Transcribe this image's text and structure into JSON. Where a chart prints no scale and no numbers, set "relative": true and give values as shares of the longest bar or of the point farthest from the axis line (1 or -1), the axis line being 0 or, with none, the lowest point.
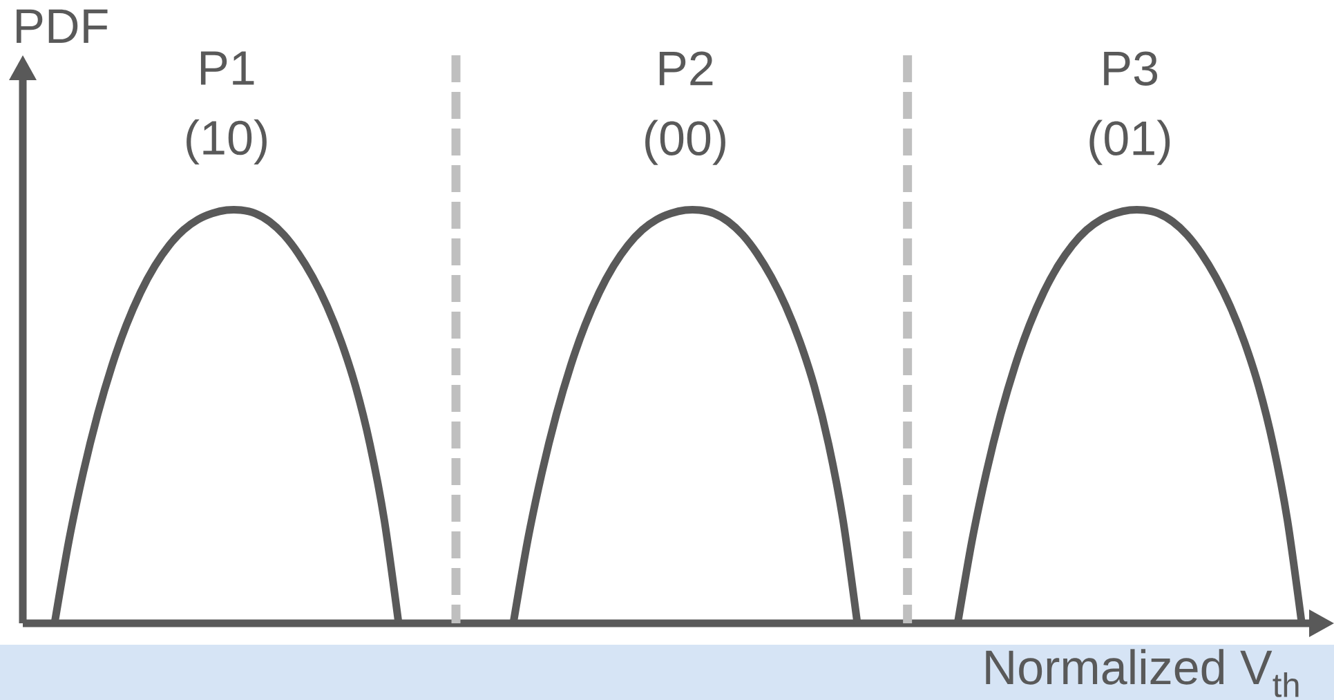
{
  "chart_data": {
    "type": "line",
    "relative": true,
    "xlabel": "Normalized V$_{th}$",
    "ylabel": "PDF",
    "categories": [
      null,
      null,
      null,
      null,
      null,
      null,
      null,
      null,
      null,
      null,
      null,
      null,
      null,
      null,
      null,
      null,
      null,
      null,
      null,
      null,
      null,
      null,
      null,
      null,
      null,
      null,
      null,
      null,
      null,
      null,
      null,
      null,
      null,
      null,
      null,
      null,
      null,
      null,
      null,
      null,
      null,
      null,
      null,
      null,
      null,
      null,
      null,
      null,
      null,
      null,
      null,
      null,
      null,
      null,
      null,
      null,
      null,
      null,
      null,
      null,
      null,
      null,
      null,
      null,
      null,
      null,
      null,
      null,
      null,
      null,
      null,
      null,
      null,
      null,
      null,
      null,
      null,
      null,
      null,
      null,
      null,
      null,
      null,
      null,
      null,
      null,
      null,
      null
    ],
    "series": [
      {
        "name": "P1 (10)",
        "color": "#595959",
        "values": [
          0,
          0.2,
          0.365,
          0.505,
          0.623,
          0.721,
          0.801,
          0.865,
          0.915,
          0.952,
          0.977,
          0.992,
          1,
          1,
          0.992,
          0.972,
          0.94,
          0.895,
          0.838,
          0.768,
          0.681,
          0.573,
          0.433,
          0.25,
          0,
          null,
          null,
          null,
          null,
          null,
          null,
          null,
          null,
          null,
          null,
          null,
          null,
          null,
          null,
          null,
          null,
          null,
          null,
          null,
          null,
          null,
          null,
          null,
          null,
          null,
          null,
          null,
          null,
          null,
          null,
          null,
          null,
          null,
          null,
          null,
          null,
          null,
          null,
          null,
          null,
          null,
          null,
          null,
          null,
          null,
          null,
          null,
          null,
          null,
          null,
          null,
          null,
          null,
          null,
          null,
          null,
          null,
          null,
          null,
          null,
          null,
          null,
          null
        ]
      },
      {
        "name": "P2 (00)",
        "color": "#595959",
        "values": [
          null,
          null,
          null,
          null,
          null,
          null,
          null,
          null,
          null,
          null,
          null,
          null,
          null,
          null,
          null,
          null,
          null,
          null,
          null,
          null,
          null,
          null,
          null,
          null,
          null,
          null,
          null,
          null,
          null,
          null,
          null,
          null,
          0,
          0.2,
          0.365,
          0.505,
          0.623,
          0.721,
          0.801,
          0.865,
          0.915,
          0.952,
          0.977,
          0.992,
          1,
          1,
          0.992,
          0.972,
          0.94,
          0.895,
          0.838,
          0.768,
          0.681,
          0.573,
          0.433,
          0.25,
          0,
          null,
          null,
          null,
          null,
          null,
          null,
          null,
          null,
          null,
          null,
          null,
          null,
          null,
          null,
          null,
          null,
          null,
          null,
          null,
          null,
          null,
          null,
          null,
          null,
          null,
          null,
          null,
          null,
          null,
          null,
          null
        ]
      },
      {
        "name": "P3 (01)",
        "color": "#595959",
        "values": [
          null,
          null,
          null,
          null,
          null,
          null,
          null,
          null,
          null,
          null,
          null,
          null,
          null,
          null,
          null,
          null,
          null,
          null,
          null,
          null,
          null,
          null,
          null,
          null,
          null,
          null,
          null,
          null,
          null,
          null,
          null,
          null,
          null,
          null,
          null,
          null,
          null,
          null,
          null,
          null,
          null,
          null,
          null,
          null,
          null,
          null,
          null,
          null,
          null,
          null,
          null,
          null,
          null,
          null,
          null,
          null,
          null,
          null,
          null,
          null,
          null,
          null,
          null,
          0,
          0.2,
          0.365,
          0.505,
          0.623,
          0.721,
          0.801,
          0.865,
          0.915,
          0.952,
          0.977,
          0.992,
          1,
          1,
          0.992,
          0.972,
          0.94,
          0.895,
          0.838,
          0.768,
          0.681,
          0.573,
          0.433,
          0.25,
          0
        ]
      }
    ]
  }
}
